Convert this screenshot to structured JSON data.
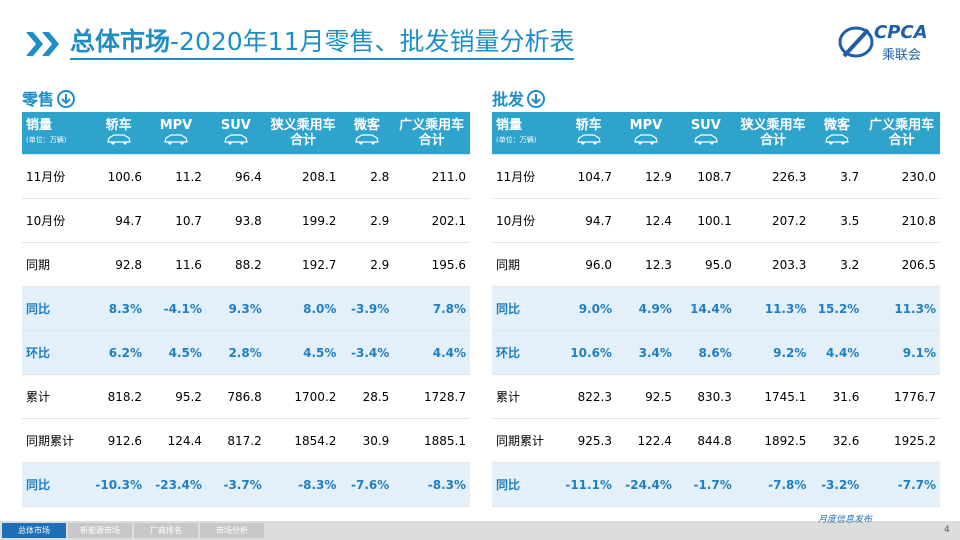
{
  "header": {
    "title_bold": "总体市场",
    "title_rest": "-2020年11月零售、批发销量分析表",
    "logo": "CPCA",
    "logo_sub": "乘联会"
  },
  "tables": [
    {
      "label": "零售",
      "unit_label": "销量",
      "unit_note": "(单位：万辆)",
      "columns": [
        [
          "轿车"
        ],
        [
          "MPV"
        ],
        [
          "SUV"
        ],
        [
          "狭义乘用车",
          "合计"
        ],
        [
          "微客"
        ],
        [
          "广义乘用车",
          "合计"
        ]
      ],
      "rows": [
        {
          "label": "11月份",
          "cells": [
            "100.6",
            "11.2",
            "96.4",
            "208.1",
            "2.8",
            "211.0"
          ]
        },
        {
          "label": "10月份",
          "cells": [
            "94.7",
            "10.7",
            "93.8",
            "199.2",
            "2.9",
            "202.1"
          ]
        },
        {
          "label": "同期",
          "cells": [
            "92.8",
            "11.6",
            "88.2",
            "192.7",
            "2.9",
            "195.6"
          ]
        },
        {
          "label": "同比",
          "cells": [
            "8.3%",
            "-4.1%",
            "9.3%",
            "8.0%",
            "-3.9%",
            "7.8%"
          ],
          "highlight": true
        },
        {
          "label": "环比",
          "cells": [
            "6.2%",
            "4.5%",
            "2.8%",
            "4.5%",
            "-3.4%",
            "4.4%"
          ],
          "highlight": true
        },
        {
          "label": "累计",
          "cells": [
            "818.2",
            "95.2",
            "786.8",
            "1700.2",
            "28.5",
            "1728.7"
          ]
        },
        {
          "label": "同期累计",
          "cells": [
            "912.6",
            "124.4",
            "817.2",
            "1854.2",
            "30.9",
            "1885.1"
          ]
        },
        {
          "label": "同比",
          "cells": [
            "-10.3%",
            "-23.4%",
            "-3.7%",
            "-8.3%",
            "-7.6%",
            "-8.3%"
          ],
          "highlight": true
        }
      ]
    },
    {
      "label": "批发",
      "unit_label": "销量",
      "unit_note": "(单位：万辆)",
      "columns": [
        [
          "轿车"
        ],
        [
          "MPV"
        ],
        [
          "SUV"
        ],
        [
          "狭义乘用车",
          "合计"
        ],
        [
          "微客"
        ],
        [
          "广义乘用车",
          "合计"
        ]
      ],
      "rows": [
        {
          "label": "11月份",
          "cells": [
            "104.7",
            "12.9",
            "108.7",
            "226.3",
            "3.7",
            "230.0"
          ]
        },
        {
          "label": "10月份",
          "cells": [
            "94.7",
            "12.4",
            "100.1",
            "207.2",
            "3.5",
            "210.8"
          ]
        },
        {
          "label": "同期",
          "cells": [
            "96.0",
            "12.3",
            "95.0",
            "203.3",
            "3.2",
            "206.5"
          ]
        },
        {
          "label": "同比",
          "cells": [
            "9.0%",
            "4.9%",
            "14.4%",
            "11.3%",
            "15.2%",
            "11.3%"
          ],
          "highlight": true
        },
        {
          "label": "环比",
          "cells": [
            "10.6%",
            "3.4%",
            "8.6%",
            "9.2%",
            "4.4%",
            "9.1%"
          ],
          "highlight": true
        },
        {
          "label": "累计",
          "cells": [
            "822.3",
            "92.5",
            "830.3",
            "1745.1",
            "31.6",
            "1776.7"
          ]
        },
        {
          "label": "同期累计",
          "cells": [
            "925.3",
            "122.4",
            "844.8",
            "1892.5",
            "32.6",
            "1925.2"
          ]
        },
        {
          "label": "同比",
          "cells": [
            "-11.1%",
            "-24.4%",
            "-1.7%",
            "-7.8%",
            "-3.2%",
            "-7.7%"
          ],
          "highlight": true
        }
      ]
    }
  ],
  "footer": {
    "tabs": [
      "总体市场",
      "新能源市场",
      "厂商排名",
      "市场分析"
    ],
    "publish": "月度信息发布",
    "page": "4"
  }
}
